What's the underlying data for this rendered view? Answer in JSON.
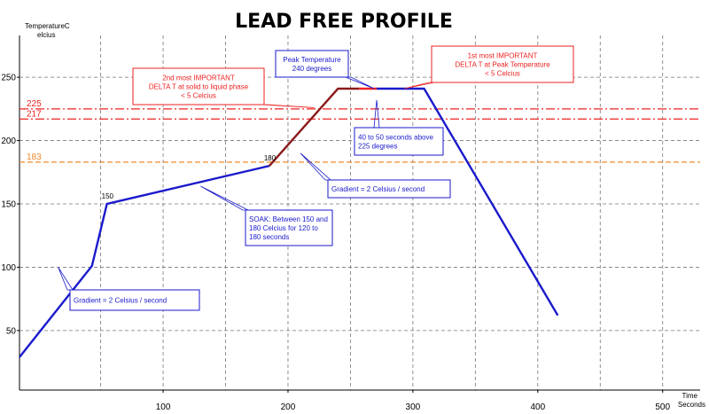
{
  "chart_data": {
    "type": "line",
    "title": "LEAD FREE PROFILE",
    "ylabel": [
      "TemperatureC",
      "elcius"
    ],
    "xlabel": [
      "Time",
      "Seconds"
    ],
    "xlim": [
      -15,
      530
    ],
    "ylim": [
      3,
      283
    ],
    "xticks": [
      100,
      200,
      300,
      400,
      500
    ],
    "yticks": [
      50,
      100,
      150,
      200,
      250
    ],
    "grid": true,
    "series": [
      {
        "color": "#1a1acc",
        "segments": [
          [
            [
              -15,
              29
            ],
            [
              43,
              101
            ],
            [
              55,
              150
            ],
            [
              185,
              180
            ]
          ],
          [
            [
              271,
              241
            ],
            [
              309,
              241
            ],
            [
              416,
              62
            ]
          ]
        ]
      },
      {
        "color": "#8b1a1a",
        "segments": [
          [
            [
              185,
              180
            ],
            [
              240,
              241
            ],
            [
              257,
              241
            ]
          ]
        ]
      },
      {
        "color": "#ee2222",
        "segments": [
          [
            [
              257,
              241
            ],
            [
              271,
              241
            ]
          ]
        ]
      }
    ],
    "reference_lines": [
      {
        "y": 225,
        "label": "225",
        "color": "#ee2222",
        "style": "dashdot"
      },
      {
        "y": 217,
        "label": "217",
        "color": "#ee2222",
        "style": "dashdot"
      },
      {
        "y": 183,
        "label": "183",
        "color": "#f0882a",
        "style": "dashed"
      }
    ],
    "point_labels": [
      {
        "x": 55,
        "y": 150,
        "text": "150"
      },
      {
        "x": 185,
        "y": 180,
        "text": "180"
      }
    ],
    "annotations": [
      {
        "lines": [
          "2nd most IMPORTANT",
          "DELTA T at solid to liquid phase",
          "< 5 Celcius"
        ],
        "color": "#ee2222",
        "align": "center",
        "ptr": [
          221,
          226
        ]
      },
      {
        "lines": [
          "Peak Temperature",
          "240 degrees"
        ],
        "color": "#1a1acc",
        "align": "center",
        "ptr": [
          269,
          241
        ]
      },
      {
        "lines": [
          "1st most IMPORTANT",
          "DELTA T at Peak Temperature",
          "< 5 Celcius"
        ],
        "color": "#ee2222",
        "align": "center",
        "ptr": [
          293,
          241
        ]
      },
      {
        "lines": [
          "40 to 50 seconds above",
          "225 degrees"
        ],
        "color": "#1a1acc",
        "align": "left",
        "ptr": [
          271,
          232
        ]
      },
      {
        "lines": [
          "Gradient = 2 Celsius / second"
        ],
        "color": "#1a1acc",
        "align": "left",
        "ptr": [
          210,
          190
        ]
      },
      {
        "lines": [
          "SOAK: Between 150 and",
          "180 Celcius for 120 to",
          "180 seconds"
        ],
        "color": "#1a1acc",
        "align": "left",
        "ptr": [
          130,
          164
        ]
      },
      {
        "lines": [
          "Gradient = 2 Celsius / second"
        ],
        "color": "#1a1acc",
        "align": "left",
        "ptr": [
          16,
          100
        ]
      }
    ]
  }
}
